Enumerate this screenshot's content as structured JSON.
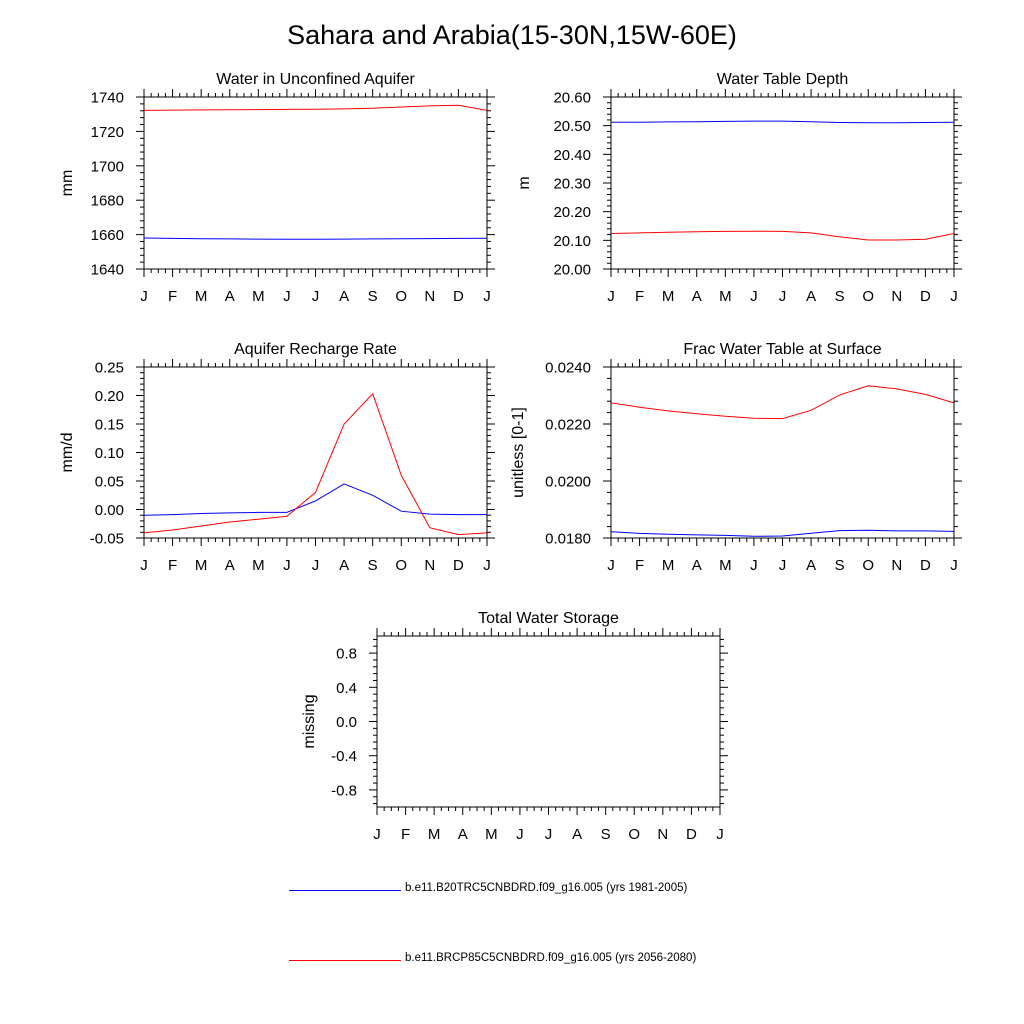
{
  "title": "Sahara and Arabia(15-30N,15W-60E)",
  "month_ticks": [
    "J",
    "F",
    "M",
    "A",
    "M",
    "J",
    "J",
    "A",
    "S",
    "O",
    "N",
    "D",
    "J"
  ],
  "colors": {
    "historical": "#0000ff",
    "future": "#ff0000"
  },
  "legend": [
    {
      "label": "b.e11.B20TRC5CNBDRD.f09_g16.005 (yrs 1981-2005)",
      "color": "#0000ff"
    },
    {
      "label": "b.e11.BRCP85C5CNBDRD.f09_g16.005 (yrs 2056-2080)",
      "color": "#ff0000"
    }
  ],
  "chart_data": [
    {
      "type": "line",
      "title": "Water in Unconfined Aquifer",
      "ylabel": "mm",
      "ylim": [
        1640,
        1740
      ],
      "yticks": [
        "1640",
        "1660",
        "1680",
        "1700",
        "1720",
        "1740"
      ],
      "series": [
        {
          "name": "b.e11.B20TRC5CNBDRD.f09_g16.005 (yrs 1981-2005)",
          "color": "#0000ff",
          "values": [
            1658.0,
            1657.8,
            1657.6,
            1657.5,
            1657.4,
            1657.3,
            1657.3,
            1657.4,
            1657.5,
            1657.6,
            1657.7,
            1657.8,
            1657.9
          ]
        },
        {
          "name": "b.e11.BRCP85C5CNBDRD.f09_g16.005 (yrs 2056-2080)",
          "color": "#ff0000",
          "values": [
            1732.2,
            1732.4,
            1732.5,
            1732.6,
            1732.7,
            1732.8,
            1732.9,
            1733.1,
            1733.5,
            1734.2,
            1734.8,
            1735.2,
            1732.2
          ]
        }
      ]
    },
    {
      "type": "line",
      "title": "Water Table Depth",
      "ylabel": "m",
      "ylim": [
        20.0,
        20.6
      ],
      "yticks": [
        "20.00",
        "20.10",
        "20.20",
        "20.30",
        "20.40",
        "20.50",
        "20.60"
      ],
      "series": [
        {
          "name": "b.e11.B20TRC5CNBDRD.f09_g16.005 (yrs 1981-2005)",
          "color": "#0000ff",
          "values": [
            20.512,
            20.512,
            20.513,
            20.514,
            20.515,
            20.516,
            20.516,
            20.514,
            20.511,
            20.51,
            20.51,
            20.511,
            20.512
          ]
        },
        {
          "name": "b.e11.BRCP85C5CNBDRD.f09_g16.005 (yrs 2056-2080)",
          "color": "#ff0000",
          "values": [
            20.124,
            20.126,
            20.128,
            20.13,
            20.131,
            20.132,
            20.131,
            20.126,
            20.112,
            20.101,
            20.101,
            20.104,
            20.124
          ]
        }
      ]
    },
    {
      "type": "line",
      "title": "Aquifer Recharge Rate",
      "ylabel": "mm/d",
      "ylim": [
        -0.05,
        0.25
      ],
      "yticks": [
        "-0.05",
        "0.00",
        "0.05",
        "0.10",
        "0.15",
        "0.20",
        "0.25"
      ],
      "series": [
        {
          "name": "b.e11.B20TRC5CNBDRD.f09_g16.005 (yrs 1981-2005)",
          "color": "#0000ff",
          "values": [
            -0.01,
            -0.009,
            -0.007,
            -0.006,
            -0.005,
            -0.005,
            0.015,
            0.045,
            0.025,
            -0.003,
            -0.008,
            -0.009,
            -0.009
          ]
        },
        {
          "name": "b.e11.BRCP85C5CNBDRD.f09_g16.005 (yrs 2056-2080)",
          "color": "#ff0000",
          "values": [
            -0.041,
            -0.036,
            -0.029,
            -0.022,
            -0.017,
            -0.012,
            0.03,
            0.15,
            0.203,
            0.06,
            -0.032,
            -0.044,
            -0.041
          ]
        }
      ]
    },
    {
      "type": "line",
      "title": "Frac Water Table at Surface",
      "ylabel": "unitless [0-1]",
      "ylim": [
        0.018,
        0.024
      ],
      "yticks": [
        "0.0180",
        "0.0200",
        "0.0220",
        "0.0240"
      ],
      "series": [
        {
          "name": "b.e11.B20TRC5CNBDRD.f09_g16.005 (yrs 1981-2005)",
          "color": "#0000ff",
          "values": [
            0.01822,
            0.01816,
            0.01813,
            0.01811,
            0.01809,
            0.01806,
            0.01807,
            0.01817,
            0.01826,
            0.01827,
            0.01825,
            0.01825,
            0.01823
          ]
        },
        {
          "name": "b.e11.BRCP85C5CNBDRD.f09_g16.005 (yrs 2056-2080)",
          "color": "#ff0000",
          "values": [
            0.02274,
            0.02259,
            0.02246,
            0.02236,
            0.02227,
            0.0222,
            0.02219,
            0.02248,
            0.02302,
            0.02334,
            0.02323,
            0.02304,
            0.02274
          ]
        }
      ]
    },
    {
      "type": "line",
      "title": "Total Water Storage",
      "ylabel": "missing",
      "ylim": [
        -1.0,
        1.0
      ],
      "yticks": [
        "-0.8",
        "-0.4",
        "0.0",
        "0.4",
        "0.8"
      ],
      "series": []
    }
  ]
}
